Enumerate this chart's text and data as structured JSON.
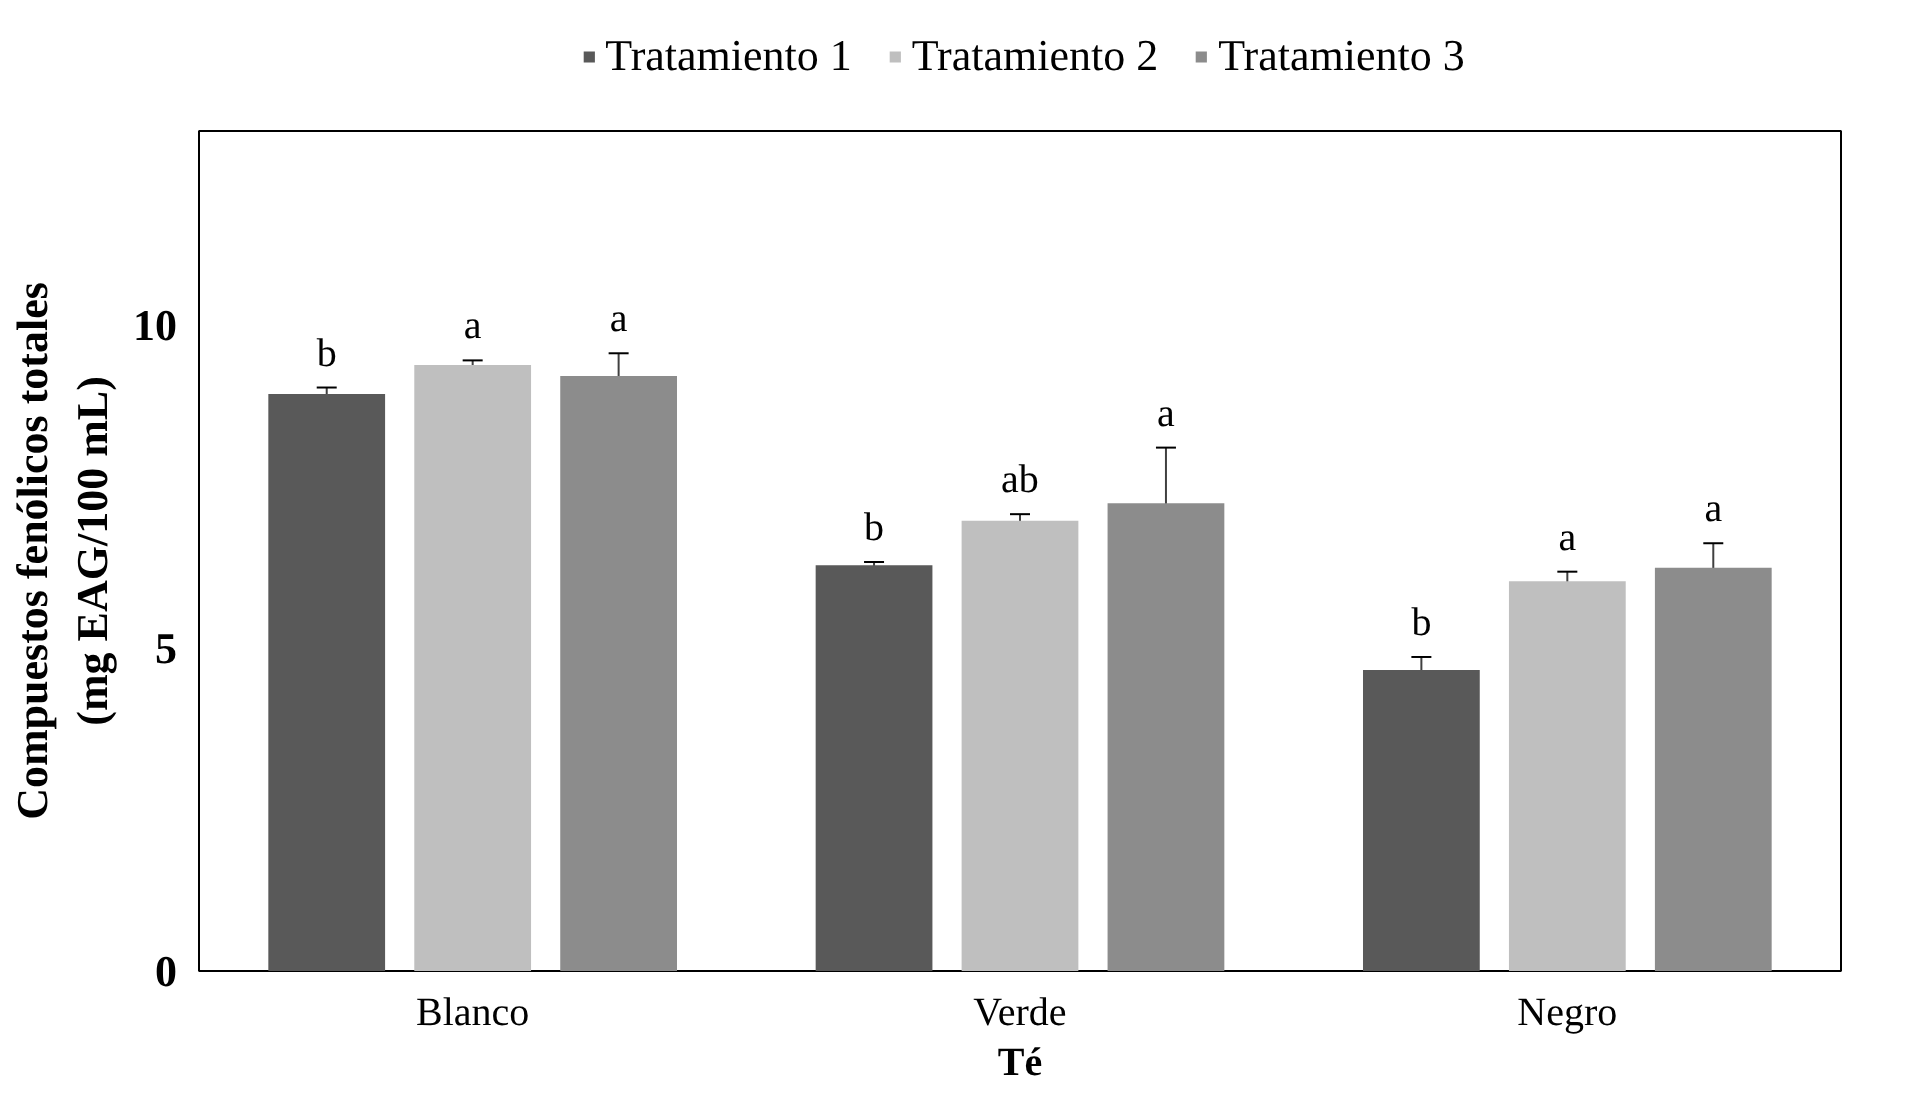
{
  "chart_data": {
    "type": "bar",
    "xlabel": "Té",
    "ylabel": "Compuestos fenólicos totales\n(mg EAG/100 mL)",
    "categories": [
      "Blanco",
      "Verde",
      "Negro"
    ],
    "series": [
      {
        "name": "Tratamiento 1",
        "color": "#595959",
        "values": [
          8.93,
          6.28,
          4.66
        ],
        "errors": [
          0.1,
          0.05,
          0.2
        ],
        "value_labels": [
          "b",
          "b",
          "b"
        ]
      },
      {
        "name": "Tratamiento 2",
        "color": "#bfbfbf",
        "values": [
          9.38,
          6.97,
          6.03
        ],
        "errors": [
          0.07,
          0.1,
          0.15
        ],
        "value_labels": [
          "a",
          "ab",
          "a"
        ]
      },
      {
        "name": "Tratamiento 3",
        "color": "#8c8c8c",
        "values": [
          9.21,
          7.24,
          6.24
        ],
        "errors": [
          0.35,
          0.86,
          0.38
        ],
        "value_labels": [
          "a",
          "a",
          "a"
        ]
      }
    ],
    "ylim": [
      0,
      13
    ],
    "yticks": [
      0,
      5,
      10
    ],
    "grid": false,
    "legend": "top"
  }
}
